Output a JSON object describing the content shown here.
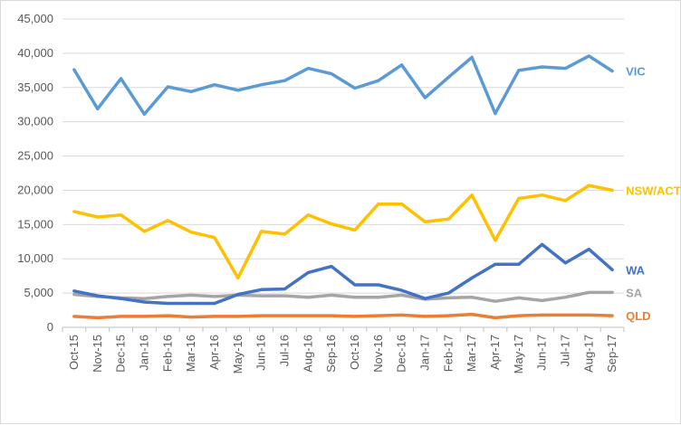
{
  "chart_data": {
    "type": "line",
    "title": "",
    "xlabel": "",
    "ylabel": "",
    "ylim": [
      0,
      45000
    ],
    "yticks": [
      0,
      5000,
      10000,
      15000,
      20000,
      25000,
      30000,
      35000,
      40000,
      45000
    ],
    "ytick_labels": [
      "0",
      "5,000",
      "10,000",
      "15,000",
      "20,000",
      "25,000",
      "30,000",
      "35,000",
      "40,000",
      "45,000"
    ],
    "grid": "horizontal",
    "legend": "end-of-line labels",
    "categories": [
      "Oct-15",
      "Nov-15",
      "Dec-15",
      "Jan-16",
      "Feb-16",
      "Mar-16",
      "Apr-16",
      "May-16",
      "Jun-16",
      "Jul-16",
      "Aug-16",
      "Sep-16",
      "Oct-16",
      "Nov-16",
      "Dec-16",
      "Jan-17",
      "Feb-17",
      "Mar-17",
      "Apr-17",
      "May-17",
      "Jun-17",
      "Jul-17",
      "Aug-17",
      "Sep-17"
    ],
    "series": [
      {
        "name": "VIC",
        "color": "#5b9bd5",
        "values": [
          37600,
          31900,
          36300,
          31100,
          35100,
          34400,
          35400,
          34600,
          35400,
          36000,
          37800,
          37000,
          34900,
          36000,
          38300,
          33500,
          36500,
          39400,
          31200,
          37500,
          38000,
          37800,
          39600,
          37400
        ]
      },
      {
        "name": "NSW/ACT",
        "color": "#ffc000",
        "values": [
          16900,
          16100,
          16400,
          14000,
          15600,
          13900,
          13100,
          7200,
          14000,
          13600,
          16400,
          15100,
          14200,
          18000,
          18000,
          15400,
          15800,
          19300,
          12700,
          18800,
          19300,
          18500,
          20700,
          20000
        ]
      },
      {
        "name": "WA",
        "color": "#4472c4",
        "values": [
          5300,
          4600,
          4200,
          3700,
          3500,
          3500,
          3500,
          4800,
          5500,
          5600,
          8000,
          8900,
          6200,
          6200,
          5400,
          4200,
          5000,
          7200,
          9200,
          9200,
          12100,
          9400,
          11400,
          8400
        ]
      },
      {
        "name": "SA",
        "color": "#a5a5a5",
        "values": [
          4800,
          4500,
          4300,
          4200,
          4500,
          4700,
          4500,
          4700,
          4600,
          4600,
          4400,
          4700,
          4400,
          4400,
          4700,
          4100,
          4300,
          4400,
          3800,
          4300,
          3900,
          4400,
          5100,
          5100
        ]
      },
      {
        "name": "QLD",
        "color": "#ed7d31",
        "values": [
          1600,
          1400,
          1600,
          1600,
          1700,
          1500,
          1600,
          1600,
          1700,
          1700,
          1700,
          1700,
          1600,
          1700,
          1800,
          1600,
          1700,
          1900,
          1400,
          1700,
          1800,
          1800,
          1800,
          1700
        ]
      }
    ]
  }
}
